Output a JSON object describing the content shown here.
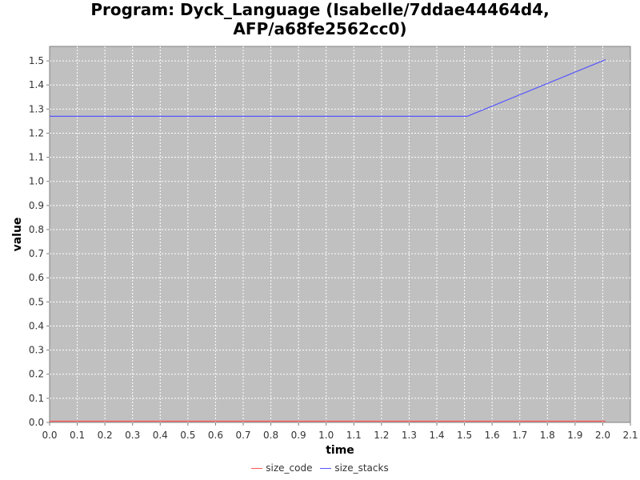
{
  "chart_data": {
    "type": "line",
    "title_lines": [
      "Program: Dyck_Language (Isabelle/7ddae44464d4,",
      "AFP/a68fe2562cc0)"
    ],
    "xlabel": "time",
    "ylabel": "value",
    "xlim": [
      0.0,
      2.1
    ],
    "ylim": [
      0.0,
      1.56
    ],
    "xticks": [
      "0.0",
      "0.1",
      "0.2",
      "0.3",
      "0.4",
      "0.5",
      "0.6",
      "0.7",
      "0.8",
      "0.9",
      "1.0",
      "1.1",
      "1.2",
      "1.3",
      "1.4",
      "1.5",
      "1.6",
      "1.7",
      "1.8",
      "1.9",
      "2.0",
      "2.1"
    ],
    "yticks": [
      "0.0",
      "0.1",
      "0.2",
      "0.3",
      "0.4",
      "0.5",
      "0.6",
      "0.7",
      "0.8",
      "0.9",
      "1.0",
      "1.1",
      "1.2",
      "1.3",
      "1.4",
      "1.5"
    ],
    "grid": true,
    "legend_position": "bottom",
    "series": [
      {
        "name": "size_code",
        "color": "#ff5555",
        "x": [
          0.0,
          2.01
        ],
        "y": [
          0.005,
          0.005
        ]
      },
      {
        "name": "size_stacks",
        "color": "#5555ff",
        "x": [
          0.0,
          1.51,
          2.01
        ],
        "y": [
          1.27,
          1.27,
          1.505
        ]
      }
    ]
  }
}
